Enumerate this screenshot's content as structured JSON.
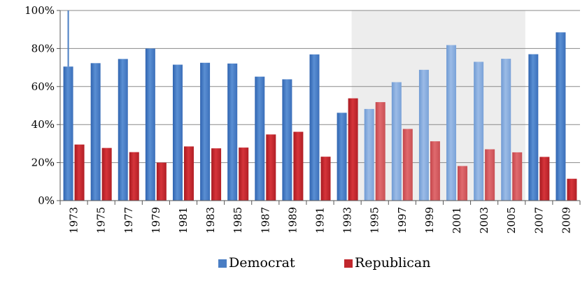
{
  "chart_data": {
    "type": "bar",
    "title": "",
    "xlabel": "",
    "ylabel": "",
    "categories": [
      "1973",
      "1975",
      "1977",
      "1979",
      "1981",
      "1983",
      "1985",
      "1987",
      "1989",
      "1991",
      "1993",
      "1995",
      "1997",
      "1999",
      "2001",
      "2003",
      "2005",
      "2007",
      "2009"
    ],
    "series": [
      {
        "name": "Democrat",
        "color": "#4a7ec4",
        "values": [
          70.5,
          72.3,
          74.5,
          80.0,
          71.5,
          72.5,
          72.1,
          65.2,
          63.8,
          76.9,
          46.2,
          48.2,
          62.3,
          68.8,
          81.8,
          73.0,
          74.6,
          77.0,
          88.5
        ]
      },
      {
        "name": "Republican",
        "color": "#c1272d",
        "values": [
          29.5,
          27.7,
          25.5,
          20.0,
          28.5,
          27.5,
          27.9,
          34.8,
          36.2,
          23.1,
          53.8,
          51.8,
          37.7,
          31.2,
          18.2,
          27.0,
          25.4,
          23.0,
          11.5
        ]
      }
    ],
    "ylim": [
      0,
      100
    ],
    "yticks": [
      "0%",
      "20%",
      "40%",
      "60%",
      "80%",
      "100%"
    ],
    "shaded_range": [
      "1995",
      "2005"
    ],
    "shaded_color": "#ededed",
    "legend_position": "bottom-center",
    "grid": true
  }
}
